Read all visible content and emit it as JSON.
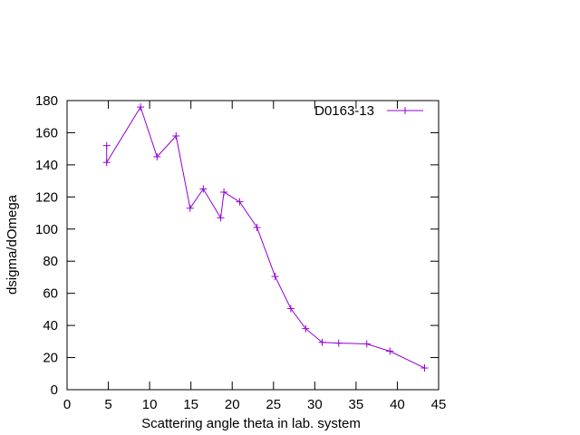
{
  "chart_data": {
    "type": "line",
    "xlabel": "Scattering angle theta in lab. system",
    "ylabel": "dsigma/dOmega",
    "xlim": [
      0,
      45
    ],
    "ylim": [
      0,
      180
    ],
    "xticks": [
      0,
      5,
      10,
      15,
      20,
      25,
      30,
      35,
      40,
      45
    ],
    "yticks": [
      0,
      20,
      40,
      60,
      80,
      100,
      120,
      140,
      160,
      180
    ],
    "grid": false,
    "legend_position": "top-right",
    "series": [
      {
        "name": "D0163-13",
        "color": "#9400d3",
        "marker": "plus",
        "x": [
          4.8,
          4.8,
          8.9,
          10.9,
          13.2,
          14.9,
          16.5,
          18.6,
          19.0,
          20.9,
          23.0,
          25.2,
          27.1,
          28.9,
          30.9,
          32.9,
          36.3,
          39.1,
          43.3
        ],
        "y": [
          152,
          141.5,
          176,
          145,
          158,
          113,
          125,
          107,
          123,
          117,
          101,
          70.5,
          50.5,
          38,
          29.5,
          29,
          28.5,
          24,
          13.5
        ]
      }
    ]
  }
}
